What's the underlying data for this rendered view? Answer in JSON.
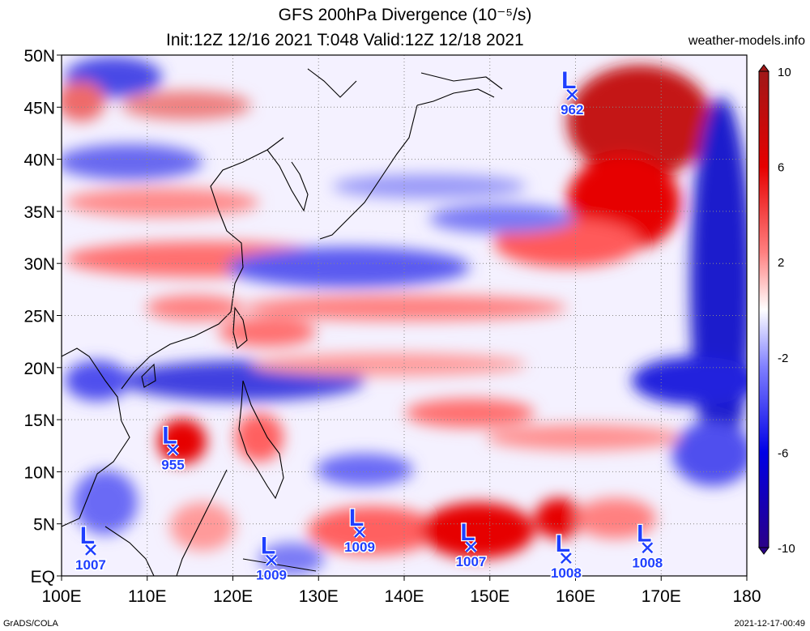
{
  "header": {
    "title": "GFS 200hPa Divergence (10⁻⁵/s)",
    "subtitle": "Init:12Z 12/16 2021 T:048 Valid:12Z 12/18 2021",
    "site": "weather-models.info"
  },
  "footer": {
    "credit": "GrADS/COLA",
    "timestamp": "2021-12-17-00:49"
  },
  "map": {
    "lat_labels": [
      "50N",
      "45N",
      "40N",
      "35N",
      "30N",
      "25N",
      "20N",
      "15N",
      "10N",
      "5N",
      "EQ"
    ],
    "lon_labels": [
      "100E",
      "110E",
      "120E",
      "130E",
      "140E",
      "150E",
      "160E",
      "170E",
      "180"
    ],
    "lat_values": [
      50,
      45,
      40,
      35,
      30,
      25,
      20,
      15,
      10,
      5,
      0
    ],
    "lon_values": [
      100,
      110,
      120,
      130,
      140,
      150,
      160,
      170,
      180
    ],
    "extent": {
      "lon_min": 100,
      "lon_max": 180,
      "lat_min": 0,
      "lat_max": 50
    }
  },
  "lows": [
    {
      "letter": "L",
      "pressure": "962",
      "lon": 159.6,
      "lat": 46.2
    },
    {
      "letter": "L",
      "pressure": "955",
      "lon": 113.0,
      "lat": 12.1
    },
    {
      "letter": "L",
      "pressure": "1007",
      "lon": 103.4,
      "lat": 2.5
    },
    {
      "letter": "L",
      "pressure": "1009",
      "lon": 124.5,
      "lat": 1.5
    },
    {
      "letter": "L",
      "pressure": "1009",
      "lon": 134.8,
      "lat": 4.2
    },
    {
      "letter": "L",
      "pressure": "1007",
      "lon": 147.8,
      "lat": 2.8
    },
    {
      "letter": "L",
      "pressure": "1008",
      "lon": 158.9,
      "lat": 1.7
    },
    {
      "letter": "L",
      "pressure": "1008",
      "lon": 168.4,
      "lat": 2.7
    }
  ],
  "colorbar": {
    "labels": [
      "10",
      "6",
      "2",
      "-2",
      "-6",
      "-10"
    ],
    "values": [
      10,
      6,
      2,
      -2,
      -6,
      -10
    ],
    "colors": [
      "#a01818",
      "#e60000",
      "#ff6b6b",
      "#ffd8d8",
      "#ffffff",
      "#d8d8ff",
      "#6b6bff",
      "#0000e6",
      "#2a0088"
    ]
  },
  "colors": {
    "low_marker": "#1f3fff",
    "positive": "#e60000",
    "negative": "#0000e6"
  }
}
